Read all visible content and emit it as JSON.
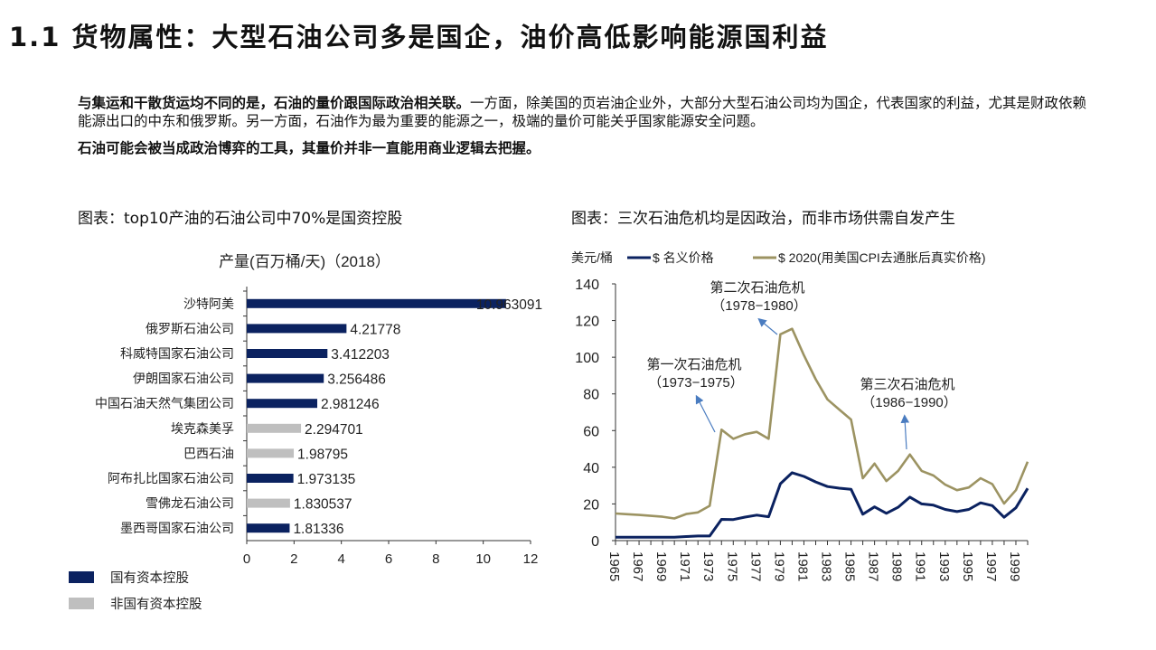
{
  "title": "1.1 货物属性：大型石油公司多是国企，油价高低影响能源国利益",
  "paragraph1_bold": "与集运和干散货运均不同的是，石油的量价跟国际政治相关联。",
  "paragraph1_rest": "一方面，除美国的页岩油企业外，大部分大型石油公司均为国企，代表国家的利益，尤其是财政依赖能源出口的中东和俄罗斯。另一方面，石油作为最为重要的能源之一，极端的量价可能关乎国家能源安全问题。",
  "paragraph2_bold": "石油可能会被当成政治博弈的工具，其量价并非一直能用商业逻辑去把握。",
  "left_caption": "图表：top10产油的石油公司中70%是国资控股",
  "right_caption": "图表：三次石油危机均是因政治，而非市场供需自发产生",
  "chart_data": [
    {
      "type": "bar",
      "orientation": "horizontal",
      "title": "产量(百万桶/天)（2018）",
      "categories": [
        "沙特阿美",
        "俄罗斯石油公司",
        "科威特国家石油公司",
        "伊朗国家石油公司",
        "中国石油天然气集团公司",
        "埃克森美孚",
        "巴西石油",
        "阿布扎比国家石油公司",
        "雪佛龙石油公司",
        "墨西哥国家石油公司"
      ],
      "values": [
        10.963091,
        4.21778,
        3.412203,
        3.256486,
        2.981246,
        2.294701,
        1.98795,
        1.973135,
        1.830537,
        1.81336
      ],
      "value_labels": [
        "10.963091",
        "4.21778",
        "3.412203",
        "3.256486",
        "2.981246",
        "2.294701",
        "1.98795",
        "1.973135",
        "1.830537",
        "1.81336"
      ],
      "state_owned": [
        true,
        true,
        true,
        true,
        true,
        false,
        false,
        true,
        false,
        true
      ],
      "xlim": [
        0,
        12
      ],
      "xticks": [
        "0",
        "2",
        "4",
        "6",
        "8",
        "10",
        "12"
      ],
      "legend": [
        {
          "name": "国有资本控股",
          "color": "#0b2260"
        },
        {
          "name": "非国有资本控股",
          "color": "#bfbfbf"
        }
      ],
      "legend_position": "bottom-left"
    },
    {
      "type": "line",
      "ylabel": "美元/桶",
      "ylim": [
        0,
        140
      ],
      "yticks": [
        "0",
        "20",
        "40",
        "60",
        "80",
        "100",
        "120",
        "140"
      ],
      "xlim": [
        1965,
        2000
      ],
      "xticks": [
        "1965",
        "1967",
        "1969",
        "1971",
        "1973",
        "1975",
        "1977",
        "1979",
        "1981",
        "1983",
        "1985",
        "1987",
        "1989",
        "1991",
        "1993",
        "1995",
        "1997",
        "1999"
      ],
      "x": [
        1965,
        1966,
        1967,
        1968,
        1969,
        1970,
        1971,
        1972,
        1973,
        1974,
        1975,
        1976,
        1977,
        1978,
        1979,
        1980,
        1981,
        1982,
        1983,
        1984,
        1985,
        1986,
        1987,
        1988,
        1989,
        1990,
        1991,
        1992,
        1993,
        1994,
        1995,
        1996,
        1997,
        1998,
        1999,
        2000
      ],
      "series": [
        {
          "name": "$ 名义价格",
          "color": "#0b2260",
          "values": [
            1.8,
            1.8,
            1.8,
            1.8,
            1.8,
            1.8,
            2.2,
            2.5,
            2.5,
            11.6,
            11.5,
            12.8,
            13.9,
            13,
            31,
            37,
            35,
            32,
            29.5,
            28.6,
            28,
            14.4,
            18.4,
            14.9,
            18.2,
            23.7,
            20,
            19.3,
            17,
            15.8,
            17,
            20.6,
            19.1,
            12.7,
            17.9,
            28.5
          ]
        },
        {
          "name": "$ 2020(用美国CPI去通胀后真实价格)",
          "color": "#9c9362",
          "values": [
            14.8,
            14.4,
            14,
            13.5,
            13,
            12.1,
            14.5,
            15.4,
            19,
            60.5,
            55.5,
            58,
            59.3,
            55.5,
            112.5,
            115.5,
            101,
            88,
            77,
            71.5,
            66,
            34,
            42,
            32.5,
            38,
            47,
            38,
            35.5,
            30.5,
            27.5,
            29,
            34,
            30.8,
            20.2,
            27.5,
            43
          ]
        }
      ],
      "annotations": [
        {
          "line1": "第一次石油危机",
          "line2": "（1973−1975）"
        },
        {
          "line1": "第二次石油危机",
          "line2": "（1978−1980）"
        },
        {
          "line1": "第三次石油危机",
          "line2": "（1986−1990）"
        }
      ],
      "legend_position": "top"
    }
  ]
}
